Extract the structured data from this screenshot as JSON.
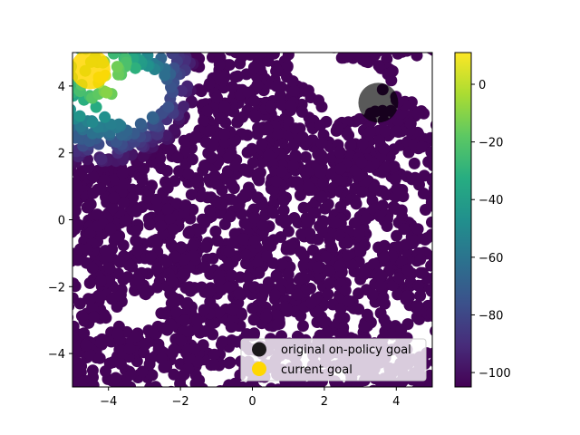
{
  "chart_data": {
    "type": "scatter",
    "title": "",
    "xlabel": "",
    "ylabel": "",
    "xlim": [
      -5,
      5
    ],
    "ylim": [
      -5,
      5
    ],
    "xticks": [
      -4,
      -2,
      0,
      2,
      4
    ],
    "yticks": [
      -4,
      -2,
      0,
      2,
      4
    ],
    "xtick_labels": [
      "−4",
      "−2",
      "0",
      "2",
      "4"
    ],
    "ytick_labels": [
      "−4",
      "−2",
      "0",
      "2",
      "4"
    ],
    "grid": false,
    "colormap": "viridis",
    "colorbar": {
      "range": [
        -105,
        11
      ],
      "ticks": [
        0,
        -20,
        -40,
        -60,
        -80,
        -100
      ],
      "tick_labels": [
        "0",
        "−20",
        "−40",
        "−60",
        "−80",
        "−100"
      ]
    },
    "value_description": "dense field of points colored by value; high values (~0 to 10) near upper-left around x=-4 to -2, y=3 to 5; values decrease toward lower-right, most of the field near -100",
    "regions": [
      {
        "name": "upper-left high region",
        "x_range": [
          -5,
          -1
        ],
        "y_range": [
          2.5,
          5
        ],
        "value_range": [
          -40,
          10
        ]
      },
      {
        "name": "transition band",
        "x_range": [
          -5,
          1
        ],
        "y_range": [
          1,
          3
        ],
        "value_range": [
          -95,
          -40
        ]
      },
      {
        "name": "bulk",
        "x_range": [
          -5,
          5
        ],
        "y_range": [
          -5,
          3
        ],
        "value_range": [
          -105,
          -95
        ]
      }
    ],
    "markers": [
      {
        "name": "original on-policy goal",
        "x": 3.5,
        "y": 3.5,
        "color": "#000000"
      },
      {
        "name": "current goal",
        "x": -4.5,
        "y": 4.5,
        "color": "#ffd700"
      }
    ],
    "legend": {
      "placement": "lower-right",
      "entries": [
        {
          "label": "original on-policy goal",
          "color": "#000000"
        },
        {
          "label": "current goal",
          "color": "#ffd700"
        }
      ]
    }
  }
}
